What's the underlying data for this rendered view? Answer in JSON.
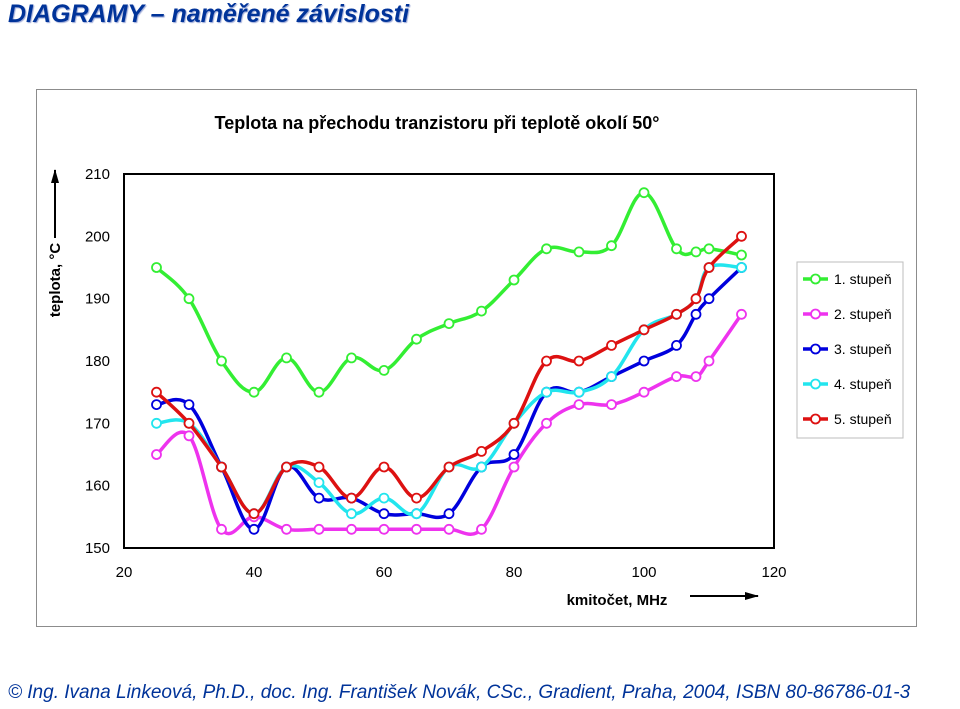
{
  "page": {
    "title": "DIAGRAMY – naměřené závislosti",
    "footer": "© Ing. Ivana Linkeová, Ph.D., doc. Ing. František Novák, CSc., Gradient, Praha, 2004, ISBN 80-86786-01-3",
    "accent_color": "#003399"
  },
  "chart_data": {
    "type": "line",
    "title": "Teplota na přechodu tranzistoru při teplotě okolí 50°",
    "xlabel": "kmitočet, MHz",
    "ylabel": "teplota, °C",
    "xlim": [
      20,
      120
    ],
    "ylim": [
      150,
      210
    ],
    "xticks": [
      "20",
      "40",
      "60",
      "80",
      "100",
      "120"
    ],
    "yticks": [
      "150",
      "160",
      "170",
      "180",
      "190",
      "200",
      "210"
    ],
    "grid": false,
    "legend_position": "right",
    "x": [
      25,
      30,
      35,
      40,
      45,
      50,
      55,
      60,
      65,
      70,
      75,
      80,
      85,
      90,
      95,
      100,
      105,
      108,
      110,
      115
    ],
    "series": [
      {
        "name": "1. stupeň",
        "color": "#33ee33",
        "values": [
          195,
          190,
          180,
          175,
          180.5,
          175,
          180.5,
          178.5,
          183.5,
          186,
          188,
          193,
          198,
          197.5,
          198.5,
          207,
          198,
          197.5,
          198,
          197
        ]
      },
      {
        "name": "2. stupeň",
        "color": "#ee33ee",
        "values": [
          165,
          168,
          153,
          155,
          153,
          153,
          153,
          153,
          153,
          153,
          153,
          163,
          170,
          173,
          173,
          175,
          177.5,
          177.5,
          180,
          187.5
        ]
      },
      {
        "name": "3. stupeň",
        "color": "#0000dd",
        "values": [
          173,
          173,
          163,
          153,
          163,
          158,
          158,
          155.5,
          155.5,
          155.5,
          163,
          165,
          175,
          175,
          177.5,
          180,
          182.5,
          187.5,
          190,
          195
        ]
      },
      {
        "name": "4. stupeň",
        "color": "#22e5ee",
        "values": [
          170,
          170,
          163,
          155.5,
          163,
          160.5,
          155.5,
          158,
          155.5,
          163,
          163,
          170,
          175,
          175,
          177.5,
          185,
          187.5,
          190,
          195,
          195
        ]
      },
      {
        "name": "5. stupeň",
        "color": "#dd1111",
        "values": [
          175,
          170,
          163,
          155.5,
          163,
          163,
          158,
          163,
          158,
          163,
          165.5,
          170,
          180,
          180,
          182.5,
          185,
          187.5,
          190,
          195,
          200
        ]
      }
    ]
  }
}
